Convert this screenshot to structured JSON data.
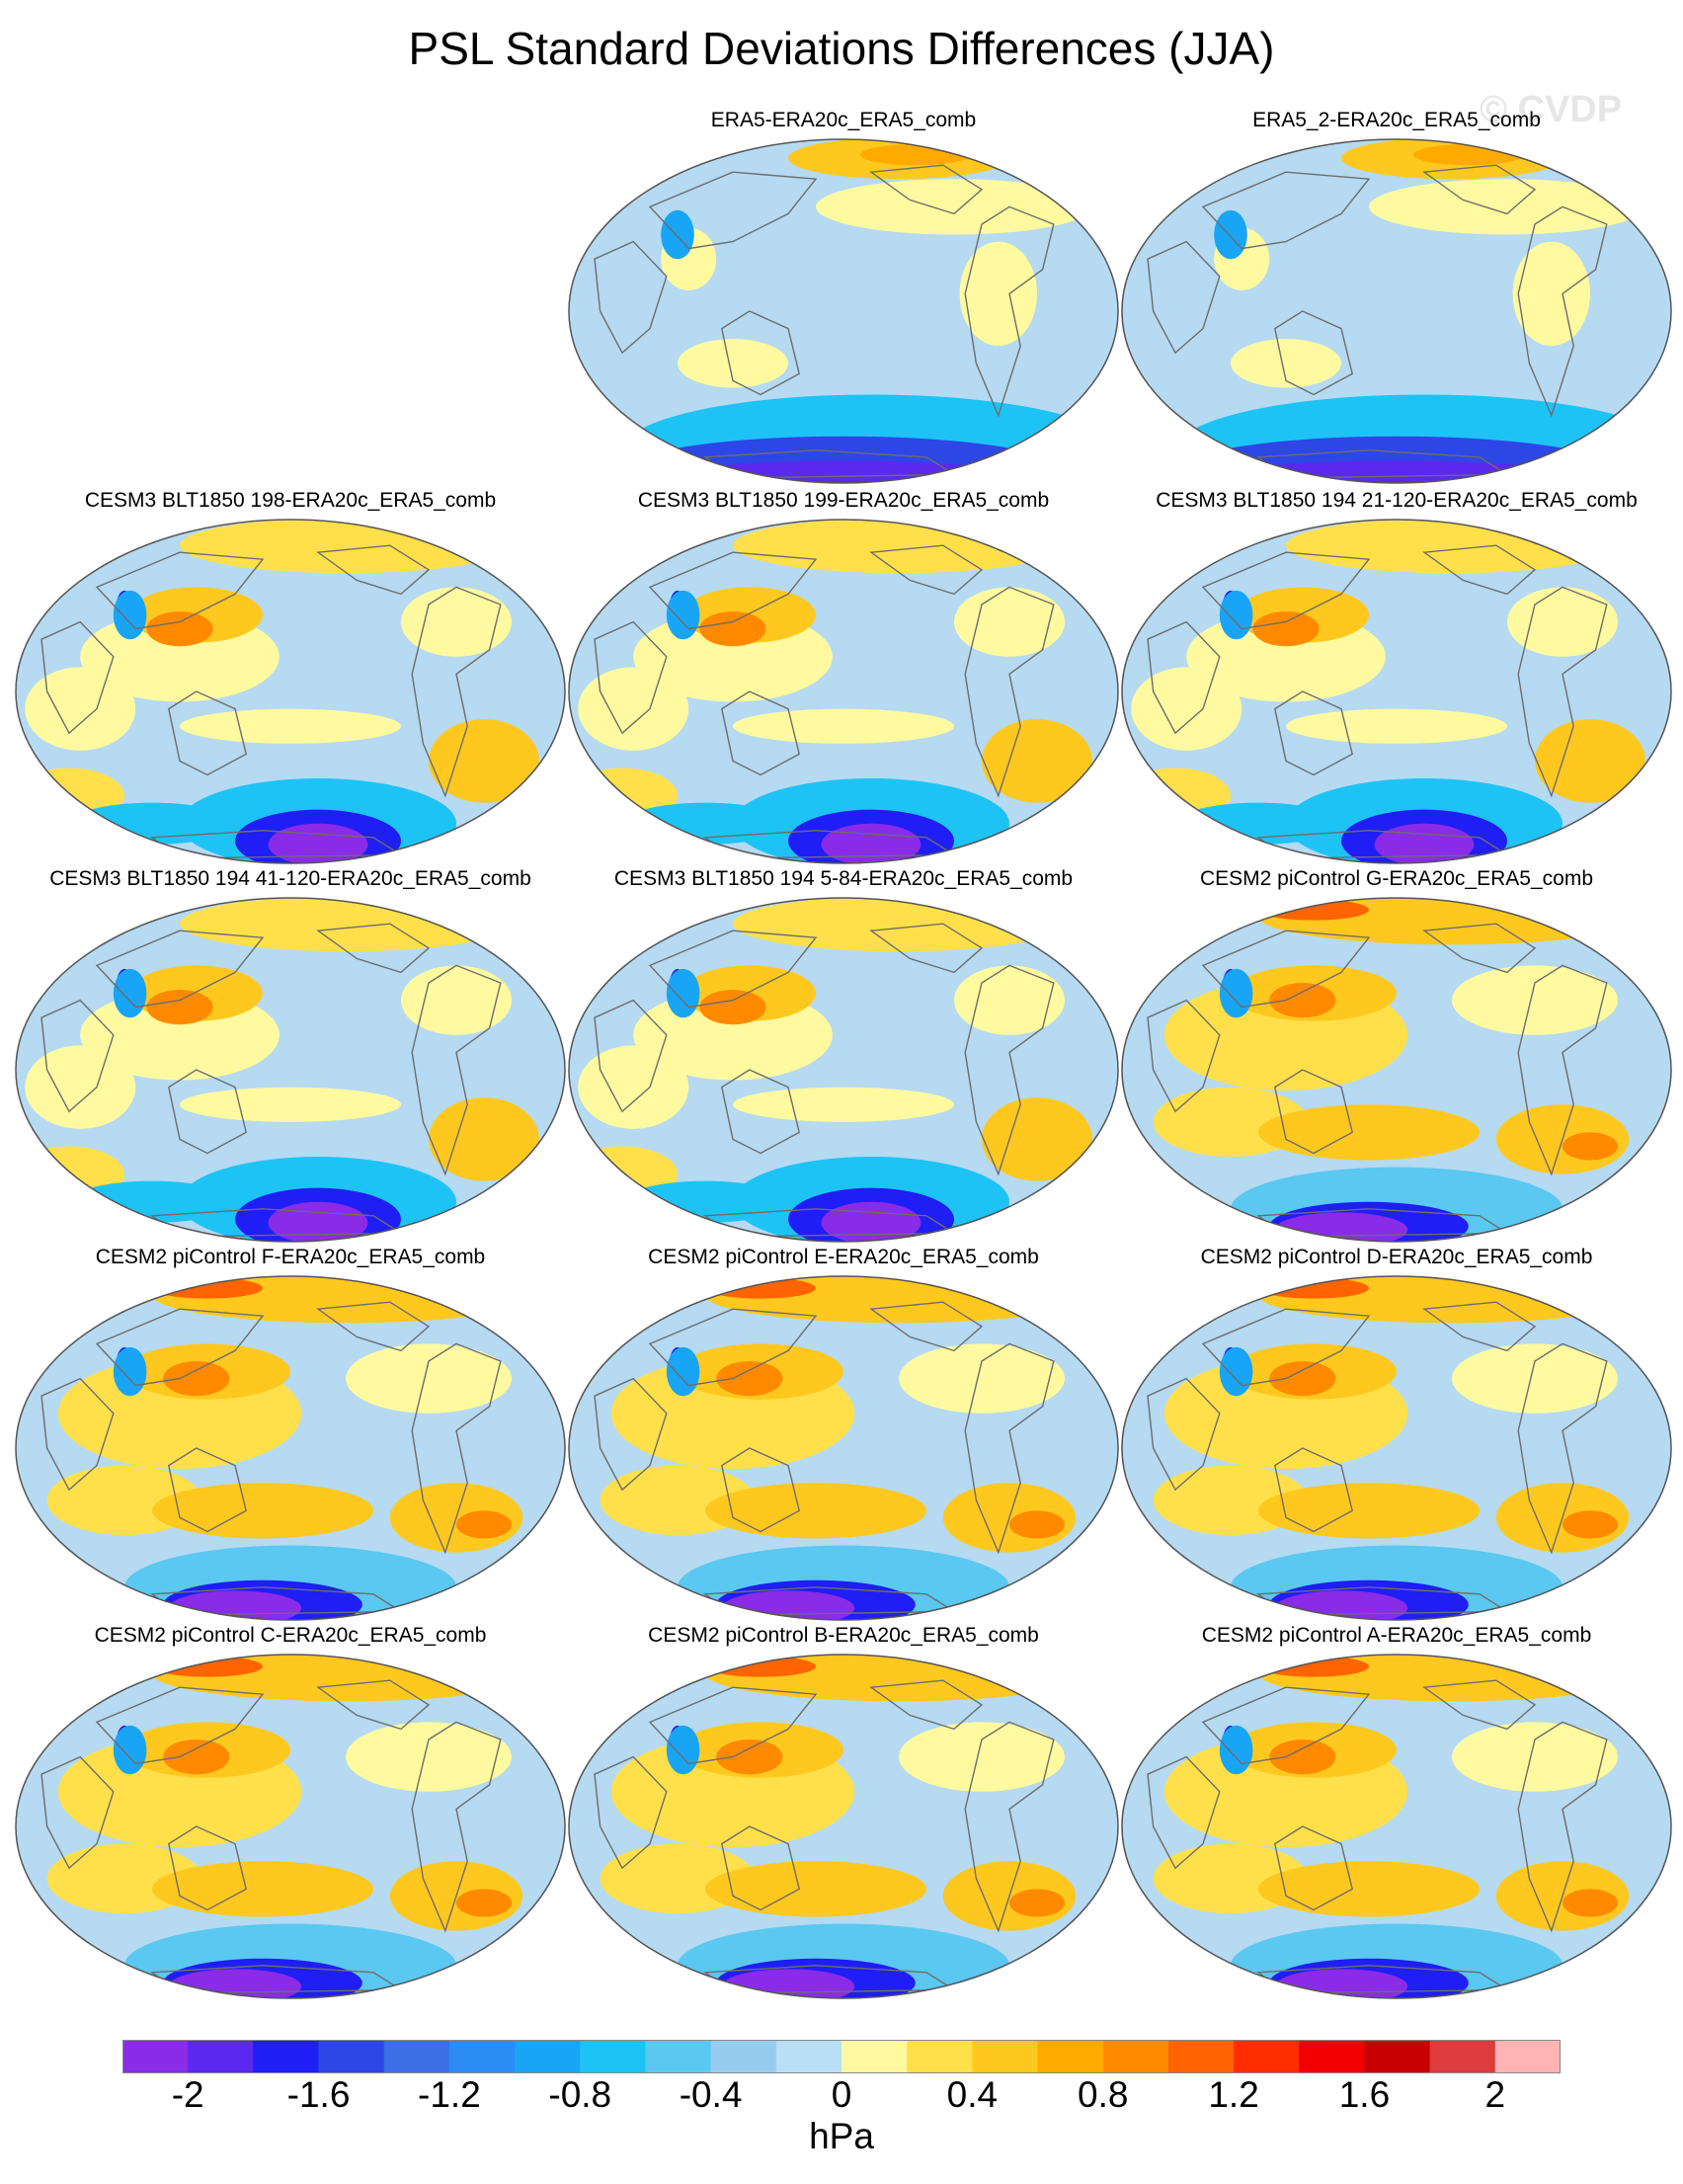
{
  "title": "PSL Standard Deviations Differences (JJA)",
  "watermark": "© CVDP",
  "colors": {
    "map_base": "#b5daf2",
    "coast": "#6d6d6d",
    "levels": [
      "#8a2be8",
      "#5b28f0",
      "#1e1ef5",
      "#2d46e6",
      "#3c6ee6",
      "#2b8cf5",
      "#19a5f5",
      "#1ec3f5",
      "#5ac8f0",
      "#96cdef",
      "#b8dff5",
      "#fffaa0",
      "#ffe04a",
      "#ffc81e",
      "#ffaa00",
      "#ff8a00",
      "#ff6400",
      "#ff2d00",
      "#f00000",
      "#c80000",
      "#dc3c3c",
      "#ffb4b4"
    ]
  },
  "colorbar": {
    "ticks": [
      "-2",
      "-1.6",
      "-1.2",
      "-0.8",
      "-0.4",
      "0",
      "0.4",
      "0.8",
      "1.2",
      "1.6",
      "2"
    ],
    "units": "hPa"
  },
  "panels": [
    {
      "title": "ERA5-ERA20c_ERA5_comb",
      "row": 0,
      "col": 1,
      "style": "obs"
    },
    {
      "title": "ERA5_2-ERA20c_ERA5_comb",
      "row": 0,
      "col": 2,
      "style": "obs"
    },
    {
      "title": "CESM3 BLT1850 198-ERA20c_ERA5_comb",
      "row": 1,
      "col": 0,
      "style": "cesm3"
    },
    {
      "title": "CESM3 BLT1850 199-ERA20c_ERA5_comb",
      "row": 1,
      "col": 1,
      "style": "cesm3"
    },
    {
      "title": "CESM3 BLT1850 194 21-120-ERA20c_ERA5_comb",
      "row": 1,
      "col": 2,
      "style": "cesm3"
    },
    {
      "title": "CESM3 BLT1850 194 41-120-ERA20c_ERA5_comb",
      "row": 2,
      "col": 0,
      "style": "cesm3"
    },
    {
      "title": "CESM3 BLT1850 194 5-84-ERA20c_ERA5_comb",
      "row": 2,
      "col": 1,
      "style": "cesm3"
    },
    {
      "title": "CESM2 piControl G-ERA20c_ERA5_comb",
      "row": 2,
      "col": 2,
      "style": "cesm2"
    },
    {
      "title": "CESM2 piControl F-ERA20c_ERA5_comb",
      "row": 3,
      "col": 0,
      "style": "cesm2"
    },
    {
      "title": "CESM2 piControl E-ERA20c_ERA5_comb",
      "row": 3,
      "col": 1,
      "style": "cesm2"
    },
    {
      "title": "CESM2 piControl D-ERA20c_ERA5_comb",
      "row": 3,
      "col": 2,
      "style": "cesm2"
    },
    {
      "title": "CESM2 piControl C-ERA20c_ERA5_comb",
      "row": 4,
      "col": 0,
      "style": "cesm2"
    },
    {
      "title": "CESM2 piControl B-ERA20c_ERA5_comb",
      "row": 4,
      "col": 1,
      "style": "cesm2"
    },
    {
      "title": "CESM2 piControl A-ERA20c_ERA5_comb",
      "row": 4,
      "col": 2,
      "style": "cesm2"
    }
  ]
}
